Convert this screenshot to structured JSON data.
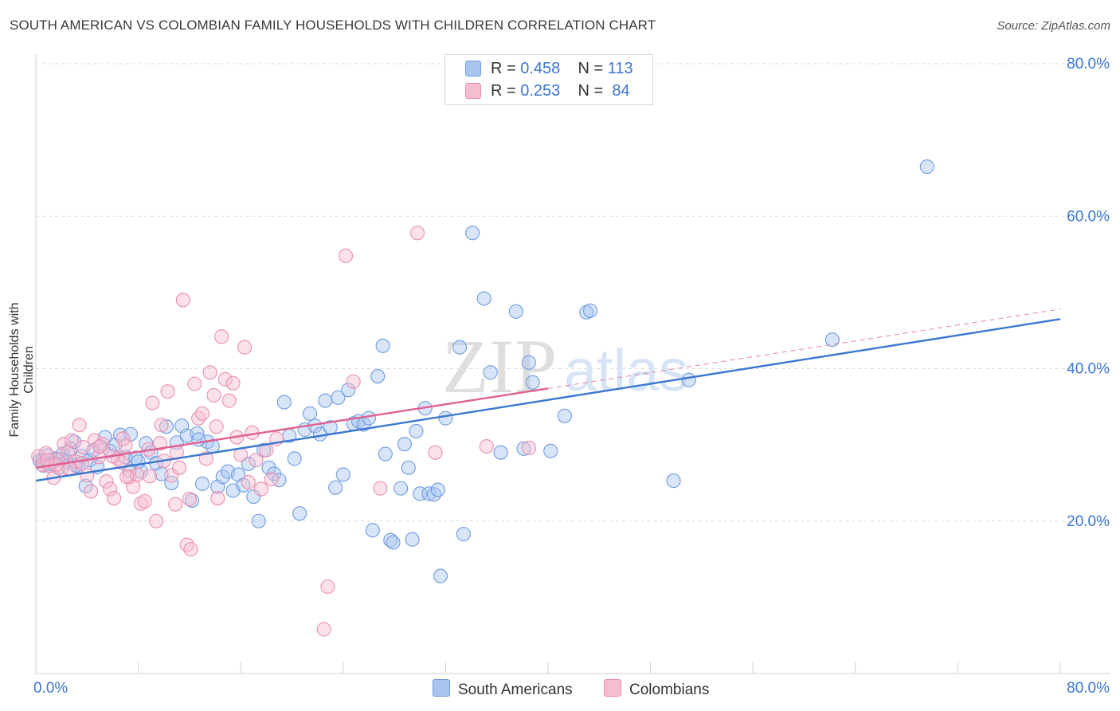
{
  "title": "SOUTH AMERICAN VS COLOMBIAN FAMILY HOUSEHOLDS WITH CHILDREN CORRELATION CHART",
  "source": "Source: ZipAtlas.com",
  "watermark": {
    "left": "ZIP",
    "right": "atlas"
  },
  "legend": {
    "r_label": "R =",
    "n_label": "N =",
    "series": [
      {
        "name": "South Americans",
        "r": "0.458",
        "n": "113",
        "fill": "#a9c5f0",
        "stroke": "#6f9be0",
        "line": "#3a78d0"
      },
      {
        "name": "Colombians",
        "r": "0.253",
        "n": "84",
        "fill": "#f6bcd0",
        "stroke": "#ea8fb0",
        "line": "#e0608f"
      }
    ]
  },
  "chart_data": {
    "type": "scatter",
    "xlabel": "",
    "ylabel": "Family Households with Children",
    "xlim": [
      0,
      80
    ],
    "ylim": [
      0,
      80
    ],
    "x_ticks": [
      "0.0%",
      "80.0%"
    ],
    "y_ticks": [
      "20.0%",
      "40.0%",
      "60.0%",
      "80.0%"
    ],
    "y_tick_values": [
      20,
      40,
      60,
      80
    ],
    "grid": true,
    "series": [
      {
        "name": "South Americans",
        "trend": {
          "x": [
            0,
            80
          ],
          "y": [
            25.3,
            46.5
          ],
          "style": "solid"
        },
        "points": [
          [
            0.3,
            28.0
          ],
          [
            0.6,
            27.3
          ],
          [
            0.9,
            28.6
          ],
          [
            1.2,
            27.6
          ],
          [
            1.5,
            28.2
          ],
          [
            1.8,
            27.0
          ],
          [
            2.1,
            28.8
          ],
          [
            2.4,
            27.8
          ],
          [
            2.7,
            29.5
          ],
          [
            3.0,
            30.4
          ],
          [
            3.3,
            27.2
          ],
          [
            3.6,
            28.5
          ],
          [
            3.9,
            24.6
          ],
          [
            4.2,
            28.0
          ],
          [
            4.5,
            29.3
          ],
          [
            5.0,
            29.8
          ],
          [
            5.4,
            31.0
          ],
          [
            5.8,
            29.2
          ],
          [
            6.2,
            30.0
          ],
          [
            6.6,
            31.3
          ],
          [
            7.0,
            28.4
          ],
          [
            7.4,
            31.4
          ],
          [
            7.8,
            28.3
          ],
          [
            8.2,
            26.5
          ],
          [
            8.6,
            30.2
          ],
          [
            9.0,
            29.0
          ],
          [
            9.4,
            27.6
          ],
          [
            9.8,
            26.2
          ],
          [
            10.2,
            32.4
          ],
          [
            10.6,
            25.0
          ],
          [
            11.0,
            30.3
          ],
          [
            11.4,
            32.5
          ],
          [
            11.8,
            31.2
          ],
          [
            12.2,
            22.7
          ],
          [
            12.6,
            31.5
          ],
          [
            13.0,
            24.9
          ],
          [
            13.4,
            30.4
          ],
          [
            13.8,
            29.8
          ],
          [
            14.2,
            24.5
          ],
          [
            14.6,
            25.8
          ],
          [
            15.0,
            26.5
          ],
          [
            15.4,
            24.0
          ],
          [
            15.8,
            26.1
          ],
          [
            16.2,
            24.7
          ],
          [
            16.6,
            27.5
          ],
          [
            17.0,
            23.2
          ],
          [
            17.4,
            20.0
          ],
          [
            17.8,
            29.3
          ],
          [
            18.2,
            27.0
          ],
          [
            18.6,
            26.2
          ],
          [
            19.0,
            25.4
          ],
          [
            19.4,
            35.6
          ],
          [
            19.8,
            31.2
          ],
          [
            20.2,
            28.2
          ],
          [
            20.6,
            21.0
          ],
          [
            21.0,
            32.0
          ],
          [
            21.4,
            34.1
          ],
          [
            21.8,
            32.5
          ],
          [
            22.2,
            31.4
          ],
          [
            22.6,
            35.8
          ],
          [
            23.0,
            32.3
          ],
          [
            23.4,
            24.4
          ],
          [
            23.6,
            36.2
          ],
          [
            24.0,
            26.1
          ],
          [
            24.4,
            37.2
          ],
          [
            24.8,
            32.8
          ],
          [
            25.2,
            33.1
          ],
          [
            25.6,
            32.7
          ],
          [
            26.0,
            33.5
          ],
          [
            26.3,
            18.8
          ],
          [
            26.7,
            39.0
          ],
          [
            27.1,
            43.0
          ],
          [
            27.3,
            28.8
          ],
          [
            27.7,
            17.5
          ],
          [
            27.9,
            17.2
          ],
          [
            28.5,
            24.3
          ],
          [
            28.8,
            30.1
          ],
          [
            29.1,
            27.0
          ],
          [
            29.4,
            17.6
          ],
          [
            29.7,
            31.8
          ],
          [
            30.0,
            23.6
          ],
          [
            30.4,
            34.8
          ],
          [
            30.7,
            23.6
          ],
          [
            31.1,
            23.5
          ],
          [
            31.4,
            24.1
          ],
          [
            31.6,
            12.8
          ],
          [
            32.0,
            33.5
          ],
          [
            33.1,
            42.8
          ],
          [
            33.4,
            18.3
          ],
          [
            34.1,
            57.8
          ],
          [
            35.0,
            49.2
          ],
          [
            35.5,
            39.5
          ],
          [
            36.3,
            29.0
          ],
          [
            37.5,
            47.5
          ],
          [
            38.1,
            29.5
          ],
          [
            38.5,
            40.8
          ],
          [
            38.8,
            38.2
          ],
          [
            40.2,
            29.2
          ],
          [
            41.3,
            33.8
          ],
          [
            43.0,
            47.4
          ],
          [
            49.8,
            25.3
          ],
          [
            51.0,
            38.5
          ],
          [
            62.2,
            43.8
          ],
          [
            69.6,
            66.5
          ],
          [
            43.3,
            47.6
          ],
          [
            12.7,
            30.7
          ],
          [
            7.3,
            26.6
          ],
          [
            4.8,
            27.1
          ],
          [
            3.1,
            27.3
          ],
          [
            2.0,
            28.1
          ],
          [
            1.0,
            27.5
          ],
          [
            0.5,
            27.9
          ],
          [
            8.0,
            27.8
          ]
        ]
      },
      {
        "name": "Colombians",
        "trend": {
          "x": [
            0,
            40
          ],
          "y": [
            27.0,
            37.4
          ],
          "style": "solid"
        },
        "trend_ext": {
          "x": [
            40,
            80
          ],
          "y": [
            37.4,
            47.8
          ],
          "style": "dashed"
        },
        "points": [
          [
            0.2,
            28.5
          ],
          [
            0.5,
            27.4
          ],
          [
            0.8,
            28.9
          ],
          [
            1.1,
            27.2
          ],
          [
            1.4,
            25.7
          ],
          [
            1.7,
            28.1
          ],
          [
            2.0,
            26.8
          ],
          [
            2.2,
            30.1
          ],
          [
            2.5,
            29.0
          ],
          [
            2.8,
            30.6
          ],
          [
            3.1,
            27.8
          ],
          [
            3.4,
            32.6
          ],
          [
            3.7,
            29.7
          ],
          [
            4.0,
            26.0
          ],
          [
            4.3,
            23.9
          ],
          [
            4.6,
            30.6
          ],
          [
            4.9,
            28.4
          ],
          [
            5.2,
            30.1
          ],
          [
            5.5,
            25.2
          ],
          [
            5.8,
            24.2
          ],
          [
            6.1,
            23.0
          ],
          [
            6.4,
            28.2
          ],
          [
            6.7,
            27.7
          ],
          [
            7.0,
            29.9
          ],
          [
            7.3,
            25.8
          ],
          [
            7.6,
            24.5
          ],
          [
            7.9,
            26.1
          ],
          [
            8.2,
            22.3
          ],
          [
            8.5,
            22.6
          ],
          [
            8.8,
            29.4
          ],
          [
            9.1,
            35.5
          ],
          [
            9.4,
            20.0
          ],
          [
            9.7,
            30.2
          ],
          [
            10.0,
            27.9
          ],
          [
            10.3,
            37.0
          ],
          [
            10.6,
            26.0
          ],
          [
            10.9,
            22.2
          ],
          [
            11.2,
            27.0
          ],
          [
            11.5,
            49.0
          ],
          [
            11.8,
            16.9
          ],
          [
            12.1,
            16.3
          ],
          [
            12.4,
            38.0
          ],
          [
            12.7,
            33.5
          ],
          [
            13.0,
            34.1
          ],
          [
            13.3,
            28.2
          ],
          [
            13.6,
            39.5
          ],
          [
            13.9,
            36.5
          ],
          [
            14.2,
            23.0
          ],
          [
            14.5,
            44.2
          ],
          [
            14.8,
            38.6
          ],
          [
            15.1,
            35.8
          ],
          [
            15.4,
            38.1
          ],
          [
            15.7,
            31.0
          ],
          [
            16.0,
            28.7
          ],
          [
            16.3,
            42.8
          ],
          [
            16.6,
            25.1
          ],
          [
            16.9,
            31.6
          ],
          [
            17.2,
            28.0
          ],
          [
            17.6,
            24.2
          ],
          [
            18.0,
            29.3
          ],
          [
            18.4,
            25.5
          ],
          [
            18.8,
            30.8
          ],
          [
            22.8,
            11.4
          ],
          [
            22.5,
            5.8
          ],
          [
            24.2,
            54.8
          ],
          [
            24.8,
            38.3
          ],
          [
            26.9,
            24.3
          ],
          [
            29.8,
            57.8
          ],
          [
            31.2,
            29.0
          ],
          [
            35.2,
            29.8
          ],
          [
            38.5,
            29.6
          ],
          [
            6.0,
            28.5
          ],
          [
            3.6,
            27.6
          ],
          [
            2.6,
            26.9
          ],
          [
            1.6,
            27.4
          ],
          [
            0.9,
            28.0
          ],
          [
            12.0,
            22.9
          ],
          [
            14.1,
            32.4
          ],
          [
            9.8,
            32.6
          ],
          [
            11.0,
            29.0
          ],
          [
            8.9,
            25.9
          ],
          [
            7.1,
            25.8
          ],
          [
            5.0,
            29.8
          ],
          [
            6.8,
            30.8
          ]
        ]
      }
    ]
  }
}
